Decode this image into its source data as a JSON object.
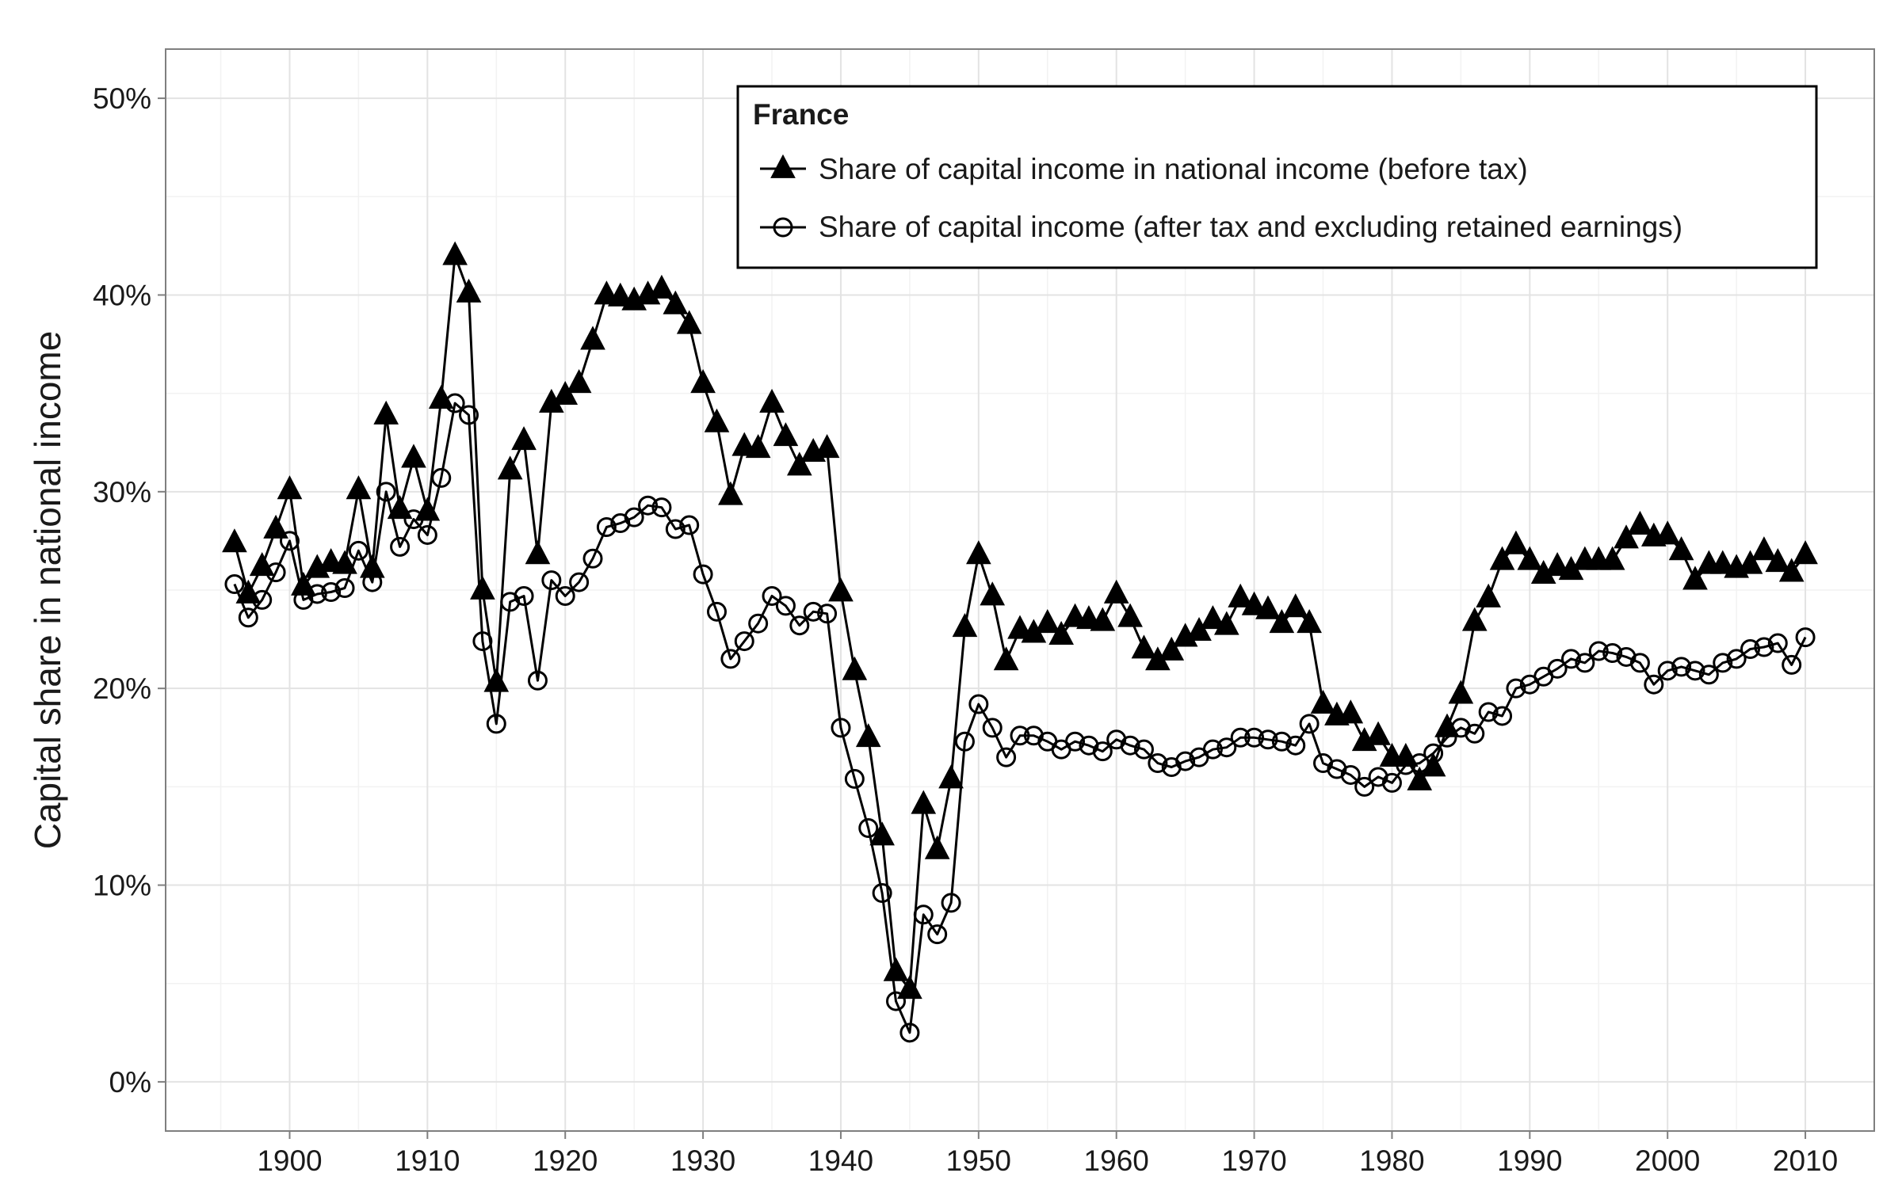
{
  "chart_data": {
    "type": "line",
    "title": "",
    "xlabel": "",
    "ylabel": "Capital share in national income",
    "xlim": [
      1891,
      2015
    ],
    "ylim": [
      -2.5,
      52.5
    ],
    "x_ticks": [
      1900,
      1910,
      1920,
      1930,
      1940,
      1950,
      1960,
      1970,
      1980,
      1990,
      2000,
      2010
    ],
    "x_tick_labels": [
      "1900",
      "1910",
      "1920",
      "1930",
      "1940",
      "1950",
      "1960",
      "1970",
      "1980",
      "1990",
      "2000",
      "2010"
    ],
    "y_ticks": [
      0,
      10,
      20,
      30,
      40,
      50
    ],
    "y_tick_labels": [
      "0%",
      "10%",
      "20%",
      "30%",
      "40%",
      "50%"
    ],
    "grid": true,
    "legend": {
      "title": "France",
      "placement": "top-right"
    },
    "series": [
      {
        "name": "Share of capital income in national income (before tax)",
        "marker": "triangle-filled",
        "color": "#000000",
        "x": [
          1896,
          1897,
          1898,
          1899,
          1900,
          1901,
          1902,
          1903,
          1904,
          1905,
          1906,
          1907,
          1908,
          1909,
          1910,
          1911,
          1912,
          1913,
          1914,
          1915,
          1916,
          1917,
          1918,
          1919,
          1920,
          1921,
          1922,
          1923,
          1924,
          1925,
          1926,
          1927,
          1928,
          1929,
          1930,
          1931,
          1932,
          1933,
          1934,
          1935,
          1936,
          1937,
          1938,
          1939,
          1940,
          1941,
          1942,
          1943,
          1944,
          1945,
          1946,
          1947,
          1948,
          1949,
          1950,
          1951,
          1952,
          1953,
          1954,
          1955,
          1956,
          1957,
          1958,
          1959,
          1960,
          1961,
          1962,
          1963,
          1964,
          1965,
          1966,
          1967,
          1968,
          1969,
          1970,
          1971,
          1972,
          1973,
          1974,
          1975,
          1976,
          1977,
          1978,
          1979,
          1980,
          1981,
          1982,
          1983,
          1984,
          1985,
          1986,
          1987,
          1988,
          1989,
          1990,
          1991,
          1992,
          1993,
          1994,
          1995,
          1996,
          1997,
          1998,
          1999,
          2000,
          2001,
          2002,
          2003,
          2004,
          2005,
          2006,
          2007,
          2008,
          2009,
          2010
        ],
        "y": [
          27.4,
          24.8,
          26.2,
          28.1,
          30.1,
          25.2,
          26.1,
          26.4,
          26.3,
          30.1,
          26.1,
          33.9,
          29.1,
          31.7,
          29.0,
          34.7,
          42.0,
          40.1,
          25.0,
          20.3,
          31.1,
          32.6,
          26.8,
          34.5,
          34.9,
          35.5,
          37.7,
          40.0,
          39.9,
          39.7,
          40.0,
          40.3,
          39.5,
          38.5,
          35.5,
          33.5,
          29.8,
          32.3,
          32.2,
          34.5,
          32.8,
          31.3,
          32.0,
          32.2,
          24.9,
          20.9,
          17.5,
          12.5,
          5.6,
          4.7,
          14.1,
          11.8,
          15.4,
          23.1,
          26.8,
          24.7,
          21.4,
          23.0,
          22.8,
          23.3,
          22.7,
          23.6,
          23.5,
          23.4,
          24.8,
          23.6,
          22.0,
          21.4,
          21.9,
          22.6,
          22.9,
          23.5,
          23.2,
          24.6,
          24.2,
          24.0,
          23.3,
          24.1,
          23.3,
          19.2,
          18.6,
          18.7,
          17.3,
          17.6,
          16.5,
          16.5,
          15.3,
          16.0,
          18.0,
          19.7,
          23.4,
          24.6,
          26.5,
          27.3,
          26.5,
          25.8,
          26.2,
          26.0,
          26.5,
          26.5,
          26.5,
          27.6,
          28.3,
          27.7,
          27.8,
          27.0,
          25.5,
          26.3,
          26.3,
          26.1,
          26.3,
          27.0,
          26.4,
          25.9,
          26.8
        ]
      },
      {
        "name": "Share of capital income (after tax and excluding retained earnings)",
        "marker": "circle-open",
        "color": "#000000",
        "x": [
          1896,
          1897,
          1898,
          1899,
          1900,
          1901,
          1902,
          1903,
          1904,
          1905,
          1906,
          1907,
          1908,
          1909,
          1910,
          1911,
          1912,
          1913,
          1914,
          1915,
          1916,
          1917,
          1918,
          1919,
          1920,
          1921,
          1922,
          1923,
          1924,
          1925,
          1926,
          1927,
          1928,
          1929,
          1930,
          1931,
          1932,
          1933,
          1934,
          1935,
          1936,
          1937,
          1938,
          1939,
          1940,
          1941,
          1942,
          1943,
          1944,
          1945,
          1946,
          1947,
          1948,
          1949,
          1950,
          1951,
          1952,
          1953,
          1954,
          1955,
          1956,
          1957,
          1958,
          1959,
          1960,
          1961,
          1962,
          1963,
          1964,
          1965,
          1966,
          1967,
          1968,
          1969,
          1970,
          1971,
          1972,
          1973,
          1974,
          1975,
          1976,
          1977,
          1978,
          1979,
          1980,
          1981,
          1982,
          1983,
          1984,
          1985,
          1986,
          1987,
          1988,
          1989,
          1990,
          1991,
          1992,
          1993,
          1994,
          1995,
          1996,
          1997,
          1998,
          1999,
          2000,
          2001,
          2002,
          2003,
          2004,
          2005,
          2006,
          2007,
          2008,
          2009,
          2010
        ],
        "y": [
          25.3,
          23.6,
          24.5,
          25.9,
          27.5,
          24.5,
          24.8,
          24.9,
          25.1,
          27.0,
          25.4,
          30.0,
          27.2,
          28.6,
          27.8,
          30.7,
          34.5,
          33.9,
          22.4,
          18.2,
          24.4,
          24.7,
          20.4,
          25.5,
          24.7,
          25.4,
          26.6,
          28.2,
          28.4,
          28.7,
          29.3,
          29.2,
          28.1,
          28.3,
          25.8,
          23.9,
          21.5,
          22.4,
          23.3,
          24.7,
          24.2,
          23.2,
          23.9,
          23.8,
          18.0,
          15.4,
          12.9,
          9.6,
          4.1,
          2.5,
          8.5,
          7.5,
          9.1,
          17.3,
          19.2,
          18.0,
          16.5,
          17.6,
          17.6,
          17.3,
          16.9,
          17.3,
          17.1,
          16.8,
          17.4,
          17.1,
          16.9,
          16.2,
          16.0,
          16.3,
          16.5,
          16.9,
          17.0,
          17.5,
          17.5,
          17.4,
          17.3,
          17.1,
          18.2,
          16.2,
          15.9,
          15.6,
          15.0,
          15.5,
          15.2,
          16.1,
          16.2,
          16.7,
          17.5,
          18.0,
          17.7,
          18.8,
          18.6,
          20.0,
          20.2,
          20.6,
          21.0,
          21.5,
          21.3,
          21.9,
          21.8,
          21.6,
          21.3,
          20.2,
          20.9,
          21.1,
          20.9,
          20.7,
          21.3,
          21.5,
          22.0,
          22.1,
          22.3,
          21.2,
          22.6
        ]
      }
    ]
  }
}
